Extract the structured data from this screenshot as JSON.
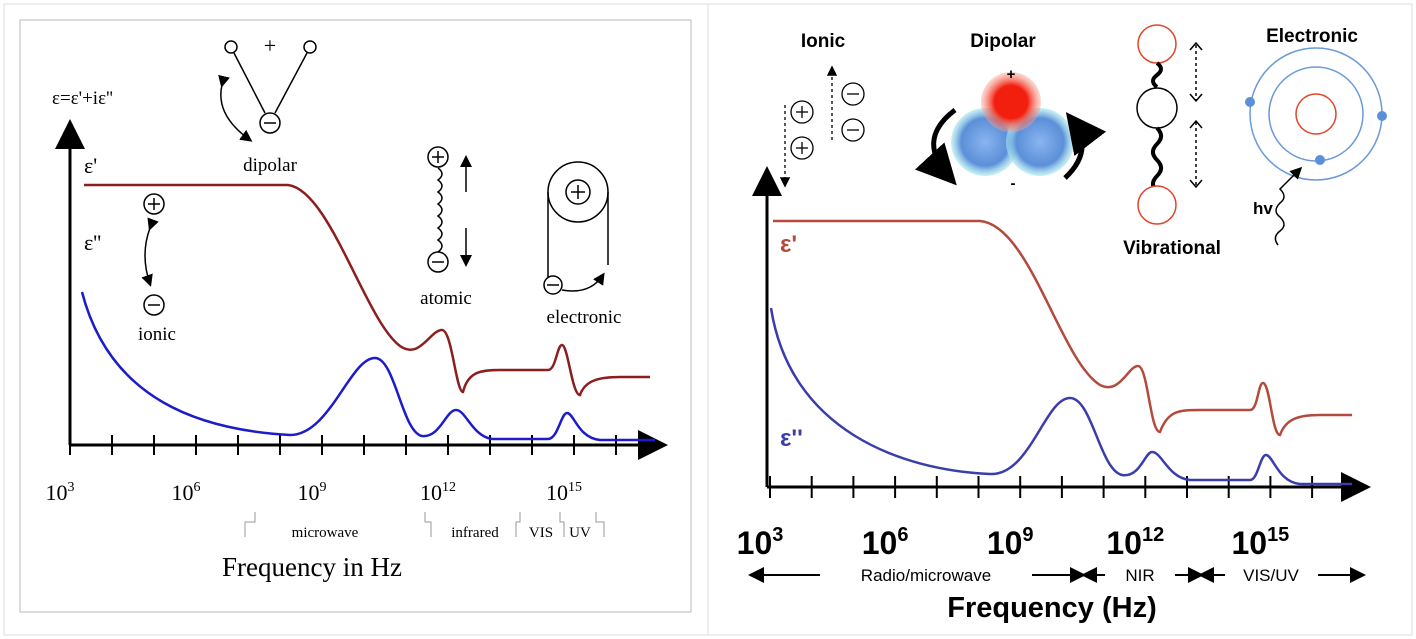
{
  "left": {
    "y_label": "ε=ε'+iε''",
    "curve_real": "ε'",
    "curve_imag": "ε''",
    "plus_sign": "+",
    "mechanisms": {
      "dipolar": "dipolar",
      "ionic": "ionic",
      "atomic": "atomic",
      "electronic": "electronic"
    },
    "x_ticks": [
      {
        "base": "10",
        "exp": "3"
      },
      {
        "base": "10",
        "exp": "6"
      },
      {
        "base": "10",
        "exp": "9"
      },
      {
        "base": "10",
        "exp": "12"
      },
      {
        "base": "10",
        "exp": "15"
      }
    ],
    "bands": [
      "microwave",
      "infrared",
      "VIS",
      "UV"
    ],
    "x_label": "Frequency in Hz"
  },
  "right": {
    "mechanisms": {
      "ionic": "Ionic",
      "dipolar": "Dipolar",
      "vibrational": "Vibrational",
      "electronic": "Electronic"
    },
    "photon": "hv",
    "charge_plus": "+",
    "charge_minus": "-",
    "curve_real": "ε'",
    "curve_imag": "ε''",
    "x_ticks": [
      {
        "base": "10",
        "exp": "3"
      },
      {
        "base": "10",
        "exp": "6"
      },
      {
        "base": "10",
        "exp": "9"
      },
      {
        "base": "10",
        "exp": "12"
      },
      {
        "base": "10",
        "exp": "15"
      }
    ],
    "bands": [
      "Radio/microwave",
      "NIR",
      "VIS/UV"
    ],
    "x_label": "Frequency (Hz)"
  }
}
